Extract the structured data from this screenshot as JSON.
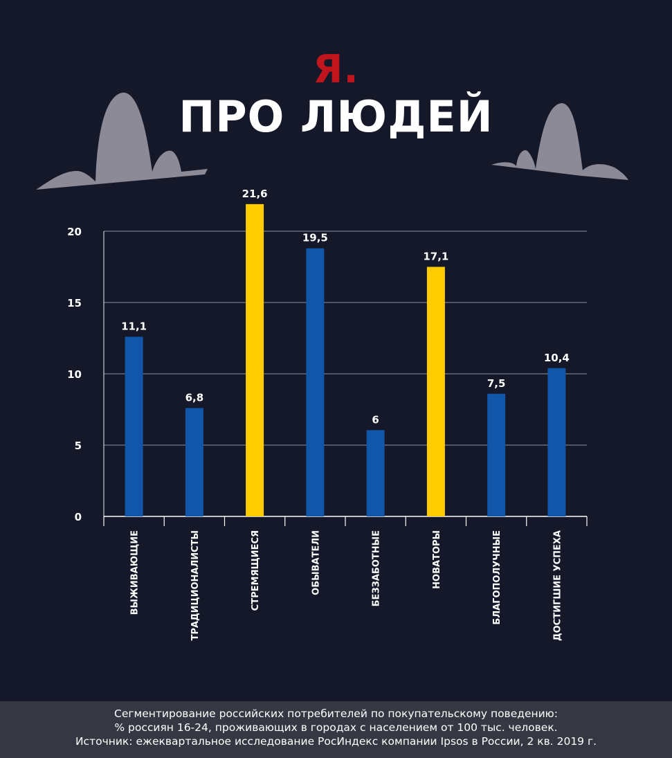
{
  "header": {
    "brand": "Я.",
    "title": "ПРО ЛЮДЕЙ"
  },
  "colors": {
    "background": "#141829",
    "brand_red": "#c0151c",
    "bar_blue": "#1156a8",
    "bar_yellow": "#ffcc00",
    "footer_bg": "#353843"
  },
  "chart_data": {
    "type": "bar",
    "categories": [
      "ВЫЖИВАЮЩИЕ",
      "ТРАДИЦИОНАЛИСТЫ",
      "СТРЕМЯЩИЕСЯ",
      "ОБЫВАТЕЛИ",
      "БЕЗЗАБОТНЫЕ",
      "НОВАТОРЫ",
      "БЛАГОПОЛУЧНЫЕ",
      "ДОСТИГШИЕ УСПЕХА"
    ],
    "values": [
      11.1,
      6.8,
      21.6,
      19.5,
      6,
      17.1,
      7.5,
      10.4
    ],
    "data_labels": [
      "11,1",
      "6,8",
      "21,6",
      "19,5",
      "6",
      "17,1",
      "7,5",
      "10,4"
    ],
    "highlight": [
      false,
      false,
      true,
      false,
      false,
      true,
      false,
      false
    ],
    "bar_heights": [
      12.6,
      7.6,
      21.9,
      18.8,
      6.05,
      17.5,
      8.6,
      10.4
    ],
    "yticks": [
      0,
      5,
      10,
      15,
      20
    ],
    "ylim": [
      0,
      20
    ],
    "grid": true,
    "title": "",
    "xlabel": "",
    "ylabel": ""
  },
  "footer": {
    "line1": "Сегментирование российских потребителей по покупательскому поведению:",
    "line2": "% россиян 16-24, проживающих в городах с населением от 100 тыс. человек.",
    "line3": "Источник: ежеквартальное исследование РосИндекс компании Ipsos в России, 2 кв. 2019 г."
  }
}
